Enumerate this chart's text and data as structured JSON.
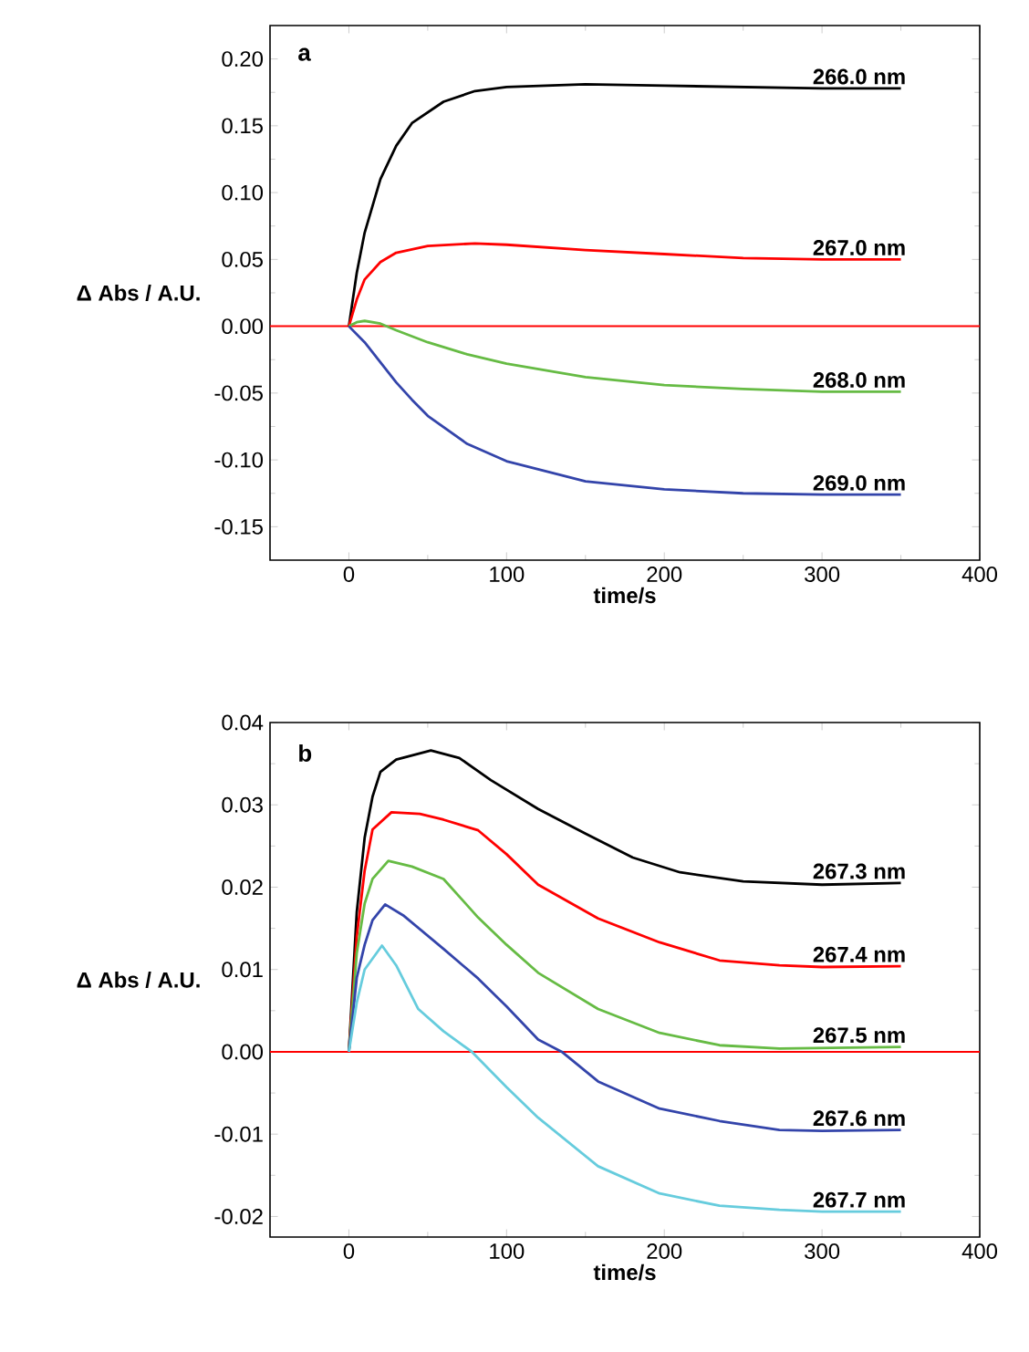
{
  "chart_data": [
    {
      "type": "line",
      "annotations": [
        "a"
      ],
      "xlabel": "time/s",
      "ylabel": "Δ Abs / A.U.",
      "xlim": [
        -50,
        400
      ],
      "ylim": [
        -0.175,
        0.225
      ],
      "xticks": [
        0,
        100,
        200,
        300,
        400
      ],
      "yticks": [
        {
          "value": -0.15,
          "label": "-0.15"
        },
        {
          "value": -0.1,
          "label": "-0.10"
        },
        {
          "value": -0.05,
          "label": "-0.05"
        },
        {
          "value": 0,
          "label": "0.00"
        },
        {
          "value": 0.05,
          "label": "0.05"
        },
        {
          "value": 0.1,
          "label": "0.10"
        },
        {
          "value": 0.15,
          "label": "0.15"
        },
        {
          "value": 0.2,
          "label": "0.20"
        }
      ],
      "ref_lines": [
        {
          "axis": "y",
          "value": 0,
          "color": "#ff0000"
        }
      ],
      "series": [
        {
          "name": "266.0 nm",
          "color": "#000000",
          "x": [
            0,
            5,
            10,
            20,
            30,
            40,
            60,
            80,
            100,
            150,
            200,
            250,
            300,
            350
          ],
          "values": [
            0,
            0.04,
            0.07,
            0.11,
            0.135,
            0.152,
            0.168,
            0.176,
            0.179,
            0.181,
            0.18,
            0.179,
            0.178,
            0.178
          ]
        },
        {
          "name": "267.0 nm",
          "color": "#ff0000",
          "x": [
            0,
            5,
            10,
            20,
            30,
            50,
            80,
            100,
            150,
            200,
            250,
            300,
            350
          ],
          "values": [
            0,
            0.02,
            0.035,
            0.048,
            0.055,
            0.06,
            0.062,
            0.061,
            0.057,
            0.054,
            0.051,
            0.05,
            0.05
          ]
        },
        {
          "name": "268.0 nm",
          "color": "#66bb44",
          "x": [
            0,
            5,
            10,
            20,
            30,
            50,
            75,
            100,
            150,
            200,
            250,
            300,
            350
          ],
          "values": [
            0,
            0.003,
            0.004,
            0.002,
            -0.003,
            -0.012,
            -0.021,
            -0.028,
            -0.038,
            -0.044,
            -0.047,
            -0.049,
            -0.049
          ]
        },
        {
          "name": "269.0 nm",
          "color": "#3344aa",
          "x": [
            0,
            10,
            20,
            30,
            40,
            50,
            75,
            100,
            150,
            200,
            250,
            300,
            350
          ],
          "values": [
            0,
            -0.012,
            -0.027,
            -0.042,
            -0.055,
            -0.067,
            -0.088,
            -0.101,
            -0.116,
            -0.122,
            -0.125,
            -0.126,
            -0.126
          ]
        }
      ]
    },
    {
      "type": "line",
      "annotations": [
        "b"
      ],
      "xlabel": "time/s",
      "ylabel": "Δ Abs / A.U.",
      "xlim": [
        -50,
        400
      ],
      "ylim": [
        -0.0225,
        0.04
      ],
      "xticks": [
        0,
        100,
        200,
        300,
        400
      ],
      "yticks": [
        {
          "value": -0.02,
          "label": "-0.02"
        },
        {
          "value": -0.01,
          "label": "-0.01"
        },
        {
          "value": 0,
          "label": "0.00"
        },
        {
          "value": 0.01,
          "label": "0.01"
        },
        {
          "value": 0.02,
          "label": "0.02"
        },
        {
          "value": 0.03,
          "label": "0.03"
        },
        {
          "value": 0.04,
          "label": "0.04"
        }
      ],
      "ref_lines": [
        {
          "axis": "y",
          "value": 0,
          "color": "#ff0000"
        }
      ],
      "series": [
        {
          "name": "267.3 nm",
          "color": "#000000",
          "x": [
            0,
            5,
            10,
            15,
            20,
            30,
            52,
            70,
            90,
            120,
            150,
            180,
            210,
            250,
            300,
            350
          ],
          "values": [
            0,
            0.017,
            0.026,
            0.031,
            0.034,
            0.0355,
            0.0366,
            0.0357,
            0.033,
            0.0295,
            0.0265,
            0.0236,
            0.0218,
            0.0207,
            0.0203,
            0.0205
          ]
        },
        {
          "name": "267.4 nm",
          "color": "#ff0000",
          "x": [
            0,
            5,
            10,
            15,
            27,
            45,
            60,
            82,
            100,
            120,
            158,
            197,
            235,
            273,
            300,
            350
          ],
          "values": [
            0,
            0.014,
            0.022,
            0.027,
            0.0291,
            0.0289,
            0.0282,
            0.0269,
            0.024,
            0.0203,
            0.0162,
            0.0133,
            0.0111,
            0.0105,
            0.0103,
            0.0104
          ]
        },
        {
          "name": "267.5 nm",
          "color": "#66bb44",
          "x": [
            0,
            5,
            10,
            15,
            25,
            40,
            60,
            82,
            100,
            120,
            158,
            197,
            235,
            273,
            350
          ],
          "values": [
            0,
            0.012,
            0.018,
            0.021,
            0.0232,
            0.0225,
            0.021,
            0.0163,
            0.013,
            0.0096,
            0.0052,
            0.0023,
            0.0008,
            0.0004,
            0.0006
          ]
        },
        {
          "name": "267.6 nm",
          "color": "#3344aa",
          "x": [
            0,
            5,
            10,
            15,
            23,
            35,
            60,
            82,
            100,
            120,
            135,
            158,
            197,
            235,
            273,
            300,
            350
          ],
          "values": [
            0,
            0.009,
            0.013,
            0.016,
            0.0179,
            0.0165,
            0.0125,
            0.0089,
            0.0055,
            0.0015,
            0,
            -0.0036,
            -0.0069,
            -0.0084,
            -0.0095,
            -0.0096,
            -0.0095
          ]
        },
        {
          "name": "267.7 nm",
          "color": "#66ccdd",
          "x": [
            0,
            5,
            10,
            21,
            30,
            44,
            60,
            78,
            100,
            120,
            158,
            197,
            235,
            273,
            300,
            350
          ],
          "values": [
            0,
            0.006,
            0.01,
            0.0129,
            0.0105,
            0.0052,
            0.0025,
            0,
            -0.0043,
            -0.008,
            -0.0139,
            -0.0172,
            -0.0187,
            -0.0192,
            -0.0194,
            -0.0194
          ]
        }
      ]
    }
  ]
}
